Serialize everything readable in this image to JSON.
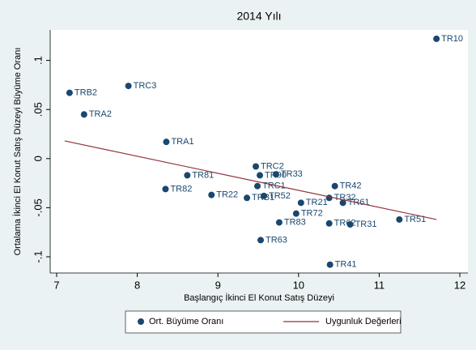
{
  "chart_data": {
    "type": "scatter",
    "title": "2014 Yılı",
    "x_label": "Başlangıç İkinci El Konut Satış Düzeyi",
    "y_label": "Ortalama İkinci El Konut Satış Düzeyi Büyüme Oranı",
    "xlim": [
      6.92,
      12.1
    ],
    "ylim": [
      -0.1165,
      0.131
    ],
    "xticks": [
      7,
      8,
      9,
      10,
      11,
      12
    ],
    "yticks": [
      {
        "value": -0.1,
        "label": "-.1"
      },
      {
        "value": -0.05,
        "label": "-.05"
      },
      0,
      {
        "value": 0.05,
        "label": ".05"
      },
      {
        "value": 0.1,
        "label": ".1"
      }
    ],
    "grid": false,
    "series": [
      {
        "name": "Ort. Büyüme Oranı",
        "color": "#1a476f",
        "kind": "points",
        "labels": [
          "TR10",
          "TRB2",
          "TRC3",
          "TRA2",
          "TRA1",
          "TRC2",
          "TR90",
          "TR33",
          "TR81",
          "TRC1",
          "TR42",
          "TR82",
          "TR22",
          "TRB1",
          "TR52",
          "TR32",
          "TR21",
          "TR61",
          "TR72",
          "TR51",
          "TR83",
          "TR62",
          "TR31",
          "TR63",
          "TR41"
        ],
        "x": [
          11.71,
          7.16,
          7.89,
          7.34,
          8.36,
          9.47,
          9.52,
          9.72,
          8.62,
          9.49,
          10.45,
          8.35,
          8.92,
          9.36,
          9.57,
          10.38,
          10.03,
          10.55,
          9.97,
          11.25,
          9.76,
          10.38,
          10.64,
          9.53,
          10.39
        ],
        "values": [
          0.122,
          0.067,
          0.074,
          0.045,
          0.017,
          -0.008,
          -0.017,
          -0.016,
          -0.017,
          -0.028,
          -0.028,
          -0.031,
          -0.037,
          -0.04,
          -0.038,
          -0.04,
          -0.045,
          -0.045,
          -0.056,
          -0.062,
          -0.065,
          -0.066,
          -0.067,
          -0.083,
          -0.108
        ]
      },
      {
        "name": "Uygunluk Değerleri",
        "color": "#90353b",
        "kind": "line",
        "x": [
          7.1,
          11.71
        ],
        "values": [
          0.018,
          -0.062
        ]
      }
    ]
  }
}
